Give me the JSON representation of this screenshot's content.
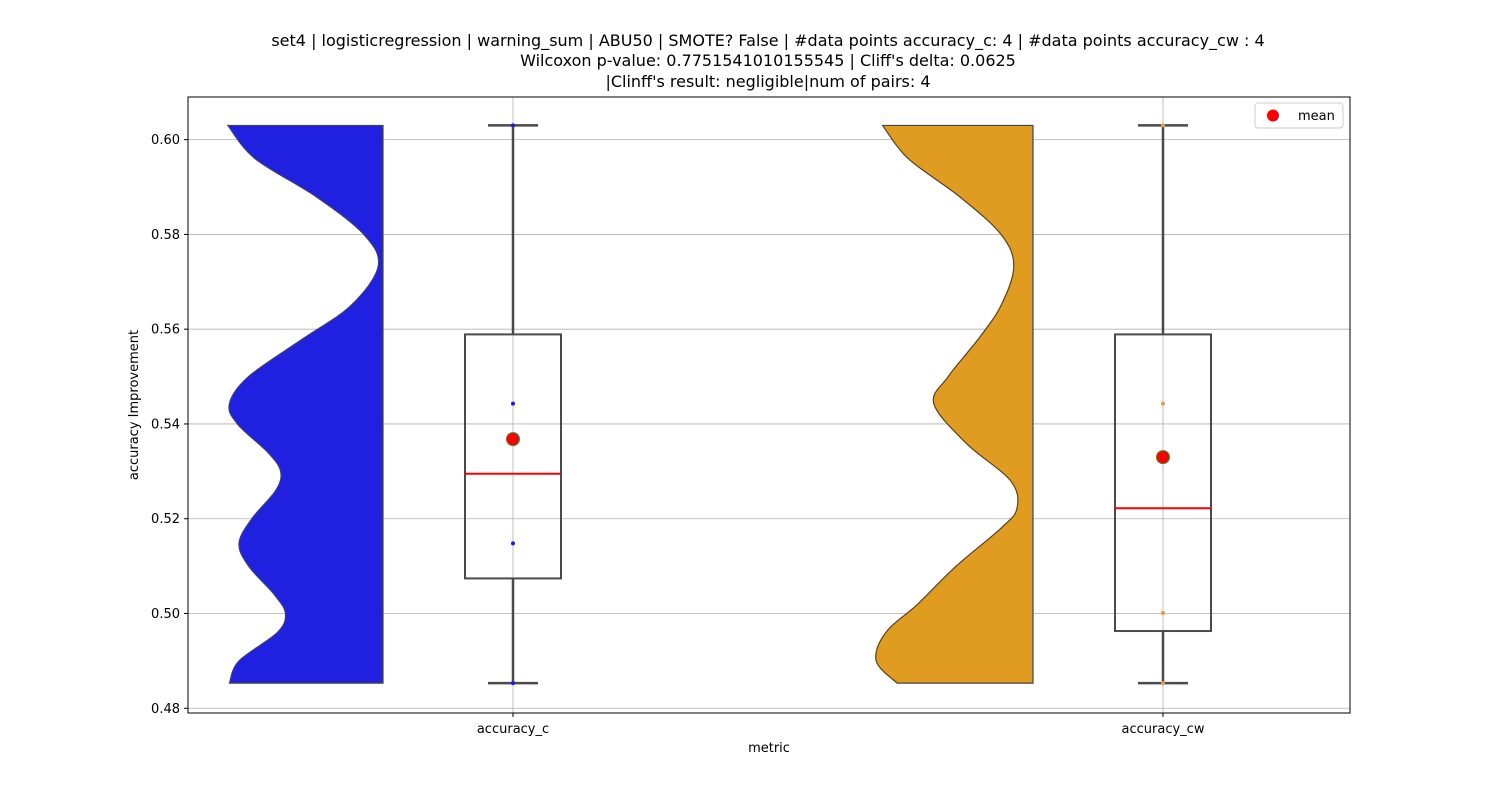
{
  "chart_data": {
    "type": "box-violin",
    "title_lines": [
      "set4 | logisticregression | warning_sum | ABU50 | SMOTE? False | #data points accuracy_c: 4 | #data points accuracy_cw : 4",
      "Wilcoxon p-value: 0.7751541010155545 | Cliff's delta: 0.0625",
      "|Clinff's result: negligible|num of pairs: 4"
    ],
    "xlabel": "metric",
    "ylabel": "accuracy Improvement",
    "ylim": [
      0.479,
      0.609
    ],
    "yticks": [
      0.48,
      0.5,
      0.52,
      0.54,
      0.56,
      0.58,
      0.6
    ],
    "ytick_labels": [
      "0.48",
      "0.50",
      "0.52",
      "0.54",
      "0.56",
      "0.58",
      "0.60"
    ],
    "grid": true,
    "legend": {
      "label": "mean",
      "placement": "top-right",
      "marker_color": "#ff0000"
    },
    "groups": [
      {
        "category": "accuracy_c",
        "violin_color": "#2020e0",
        "point_color": "#1a1ae0",
        "points": [
          0.4853,
          0.5148,
          0.5443,
          0.603
        ],
        "box": {
          "whisker_low": 0.4853,
          "q1": 0.5074,
          "median": 0.5295,
          "q3": 0.5589,
          "whisker_high": 0.603
        },
        "mean": 0.5368,
        "density": [
          [
            0.4853,
            0.96
          ],
          [
            0.49,
            0.9
          ],
          [
            0.496,
            0.66
          ],
          [
            0.5,
            0.61
          ],
          [
            0.504,
            0.68
          ],
          [
            0.51,
            0.84
          ],
          [
            0.5148,
            0.9
          ],
          [
            0.52,
            0.82
          ],
          [
            0.526,
            0.67
          ],
          [
            0.53,
            0.64
          ],
          [
            0.534,
            0.72
          ],
          [
            0.54,
            0.91
          ],
          [
            0.5443,
            0.96
          ],
          [
            0.55,
            0.84
          ],
          [
            0.558,
            0.5
          ],
          [
            0.565,
            0.2
          ],
          [
            0.5733,
            0.03
          ],
          [
            0.58,
            0.12
          ],
          [
            0.588,
            0.42
          ],
          [
            0.596,
            0.8
          ],
          [
            0.603,
            0.97
          ]
        ]
      },
      {
        "category": "accuracy_cw",
        "violin_color": "#e09c20",
        "point_color": "#e0a040",
        "points": [
          0.4853,
          0.5001,
          0.5443,
          0.603
        ],
        "box": {
          "whisker_low": 0.4853,
          "q1": 0.4963,
          "median": 0.5222,
          "q3": 0.5589,
          "whisker_high": 0.603
        },
        "mean": 0.533,
        "density": [
          [
            0.4853,
            0.85
          ],
          [
            0.49,
            0.98
          ],
          [
            0.496,
            0.92
          ],
          [
            0.502,
            0.72
          ],
          [
            0.51,
            0.48
          ],
          [
            0.518,
            0.2
          ],
          [
            0.5222,
            0.1
          ],
          [
            0.528,
            0.14
          ],
          [
            0.536,
            0.42
          ],
          [
            0.5443,
            0.62
          ],
          [
            0.55,
            0.53
          ],
          [
            0.558,
            0.34
          ],
          [
            0.565,
            0.2
          ],
          [
            0.5733,
            0.12
          ],
          [
            0.58,
            0.2
          ],
          [
            0.588,
            0.46
          ],
          [
            0.596,
            0.78
          ],
          [
            0.603,
            0.94
          ]
        ]
      }
    ]
  }
}
